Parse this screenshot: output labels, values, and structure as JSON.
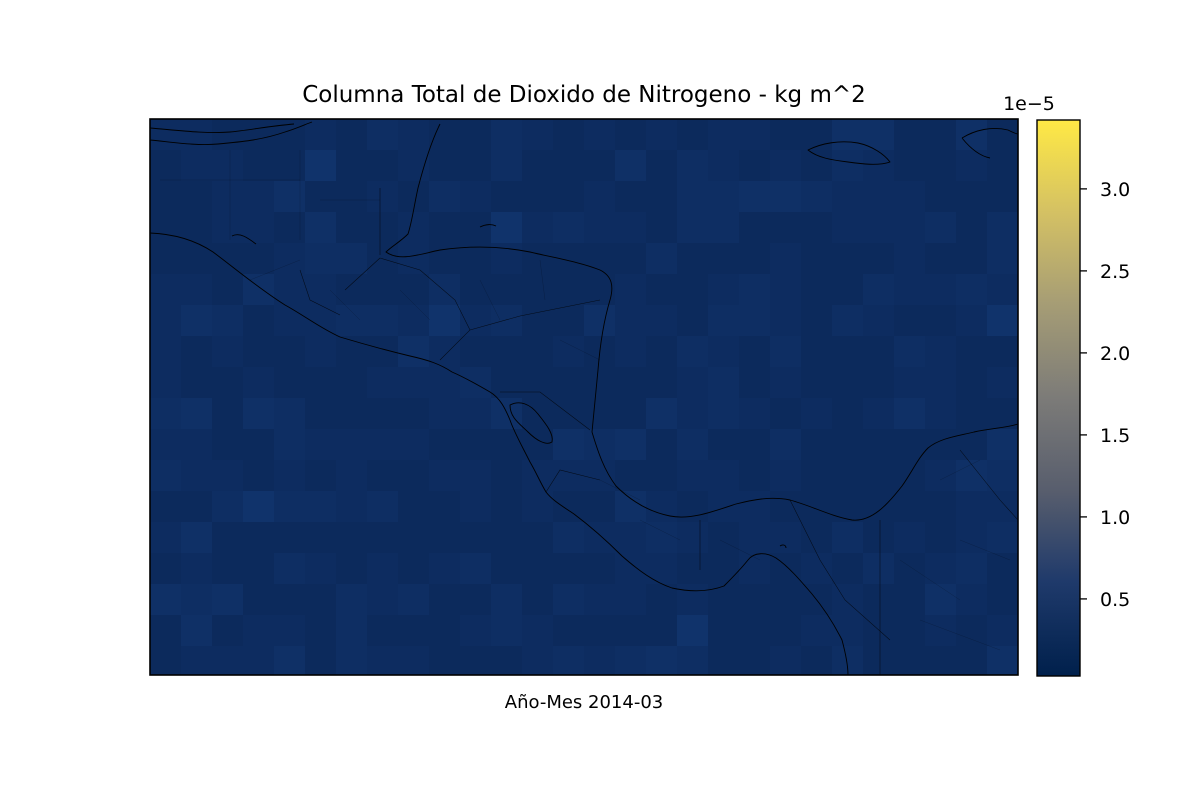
{
  "title": "Columna Total de Dioxido de Nitrogeno - kg m^2",
  "xlabel": "Año-Mes 2014-03",
  "colorbar": {
    "offset_label": "1e−5",
    "ticks": [
      {
        "value": 0.5,
        "label": "0.5"
      },
      {
        "value": 1.0,
        "label": "1.0"
      },
      {
        "value": 1.5,
        "label": "1.5"
      },
      {
        "value": 2.0,
        "label": "2.0"
      },
      {
        "value": 2.5,
        "label": "2.5"
      },
      {
        "value": 3.0,
        "label": "3.0"
      }
    ],
    "range": [
      0.03,
      3.42
    ],
    "colormap": "cividis",
    "colors": [
      "#00204c",
      "#1f3a6b",
      "#575d6d",
      "#7c7b78",
      "#a69d75",
      "#d3c064",
      "#ffe945"
    ]
  },
  "map": {
    "region": "Central America",
    "ocean_color": "#0c2a5c",
    "grid_cell_colors": [
      "#0c2a5c",
      "#0d2c60",
      "#0e2e63",
      "#0f3066",
      "#10336b"
    ]
  }
}
